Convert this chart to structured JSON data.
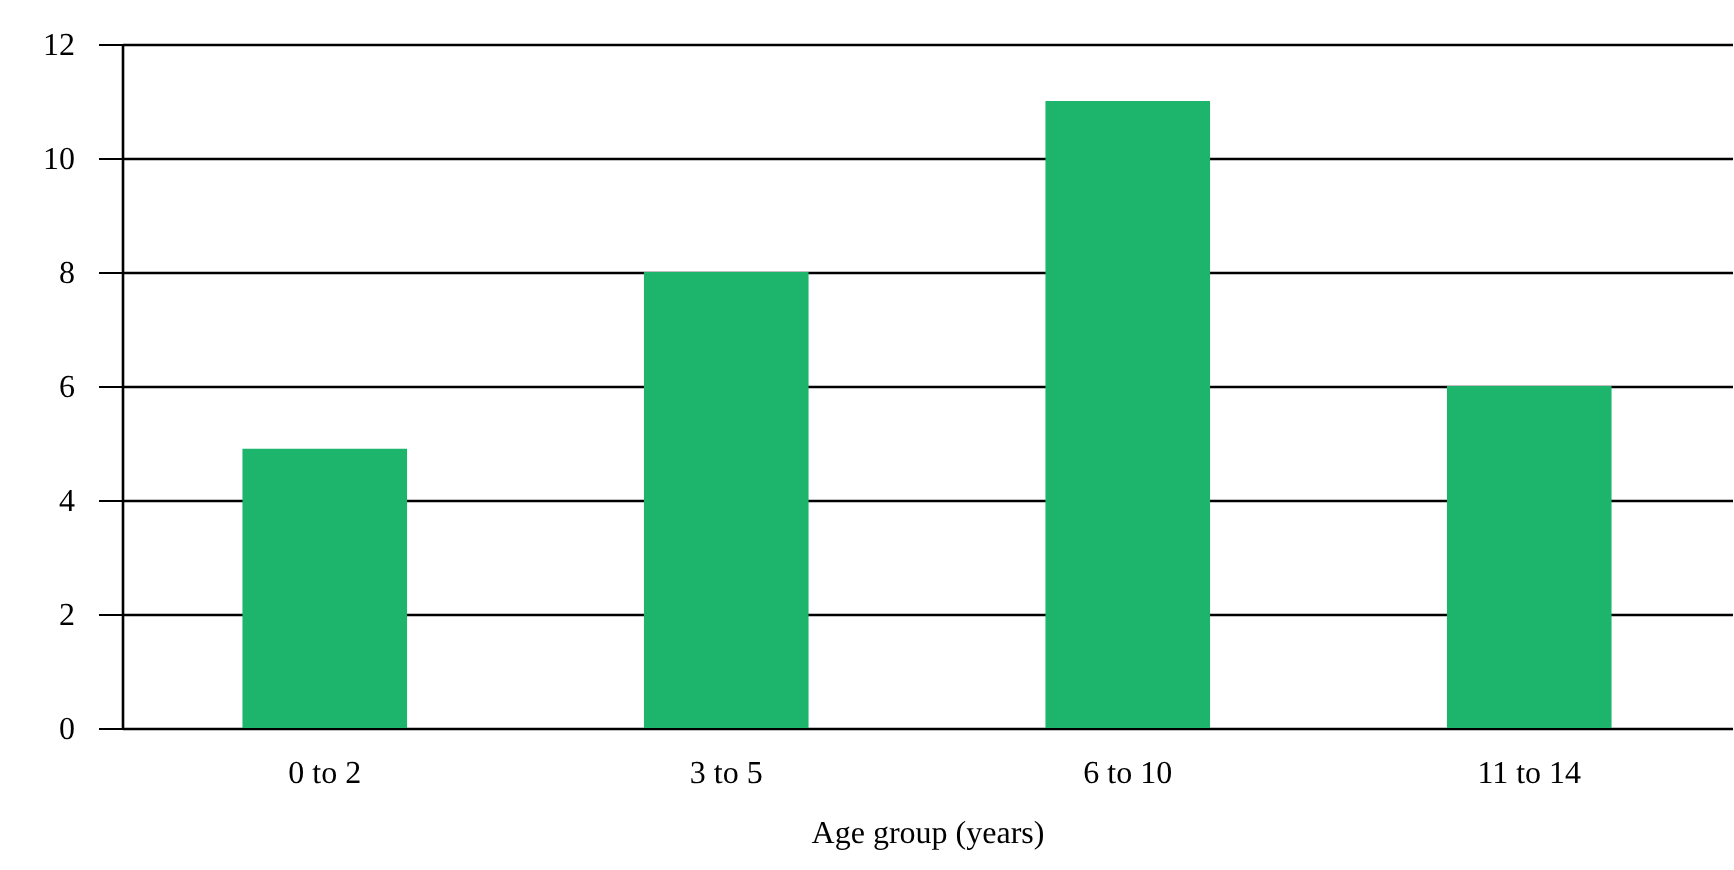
{
  "chart_data": {
    "type": "bar",
    "xlabel": "Age group (years)",
    "categories": [
      "0 to 2",
      "3 to 5",
      "6 to 10",
      "11 to 14"
    ],
    "values": [
      4.9,
      8,
      11,
      6
    ],
    "color": "#1db46c",
    "ylim": [
      0,
      12
    ],
    "yticks": [
      0,
      2,
      4,
      6,
      8,
      10,
      12
    ],
    "grid": "y"
  }
}
